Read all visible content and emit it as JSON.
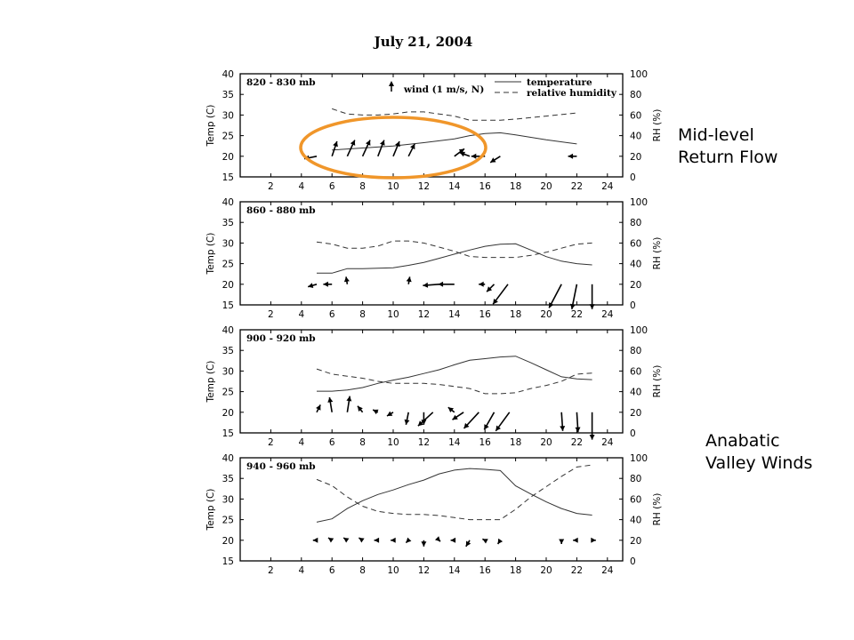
{
  "page": {
    "title": "July 21, 2004",
    "annotations": {
      "upper": [
        "Mid-level",
        "Return Flow"
      ],
      "lower": [
        "Anabatic",
        "Valley Winds"
      ]
    },
    "highlight_color": "#f0962a"
  },
  "chart_data": [
    {
      "type": "line",
      "title": "820 - 830 mb",
      "ylabel": "Temp (C)",
      "y2label": "RH (%)",
      "xlim": [
        0,
        25
      ],
      "x_ticks": [
        2,
        4,
        6,
        8,
        10,
        12,
        14,
        16,
        18,
        20,
        22,
        24
      ],
      "ylim": [
        15,
        40
      ],
      "y_ticks": [
        15,
        20,
        25,
        30,
        35,
        40
      ],
      "y2lim": [
        0,
        100
      ],
      "y2_ticks": [
        0,
        20,
        40,
        60,
        80,
        100
      ],
      "legend": {
        "placement": "top-right",
        "entries": [
          {
            "label": "temperature",
            "style": "solid"
          },
          {
            "label": "relative humidity",
            "style": "dashed"
          }
        ]
      },
      "wind_reference": {
        "label": "wind (1 m/s, N)"
      },
      "highlight": "orange ellipse around winds from hour 5 to 15",
      "series": [
        {
          "name": "temperature",
          "axis": "left",
          "style": "solid",
          "x": [
            6,
            8,
            10,
            12,
            14,
            15,
            16,
            17,
            18,
            20,
            22
          ],
          "y": [
            21.5,
            22.0,
            22.5,
            23.3,
            24.2,
            25.0,
            25.5,
            25.7,
            25.2,
            24.0,
            23.0
          ]
        },
        {
          "name": "relative humidity",
          "axis": "right",
          "style": "dashed",
          "x": [
            6,
            7,
            8,
            9,
            10,
            11,
            12,
            13,
            14,
            15,
            16,
            17,
            18,
            20,
            22
          ],
          "y": [
            66,
            61,
            60,
            60,
            61,
            63,
            63,
            61,
            59,
            55,
            55,
            55,
            56,
            59,
            62
          ]
        }
      ],
      "winds": [
        {
          "x": 5,
          "u": -1.0,
          "v": -0.2
        },
        {
          "x": 6,
          "u": 0.4,
          "v": 1.2
        },
        {
          "x": 7,
          "u": 0.6,
          "v": 1.3
        },
        {
          "x": 8,
          "u": 0.6,
          "v": 1.3
        },
        {
          "x": 9,
          "u": 0.5,
          "v": 1.3
        },
        {
          "x": 10,
          "u": 0.5,
          "v": 1.2
        },
        {
          "x": 11,
          "u": 0.5,
          "v": 1.0
        },
        {
          "x": 14,
          "u": 0.8,
          "v": 0.6
        },
        {
          "x": 15,
          "u": -0.8,
          "v": 0.3
        },
        {
          "x": 16,
          "u": -1.1,
          "v": 0.0
        },
        {
          "x": 17,
          "u": -0.8,
          "v": -0.5
        },
        {
          "x": 22,
          "u": -0.7,
          "v": 0.0
        }
      ]
    },
    {
      "type": "line",
      "title": "860 - 880 mb",
      "ylabel": "Temp (C)",
      "y2label": "RH (%)",
      "xlim": [
        0,
        25
      ],
      "x_ticks": [
        2,
        4,
        6,
        8,
        10,
        12,
        14,
        16,
        18,
        20,
        22,
        24
      ],
      "ylim": [
        15,
        40
      ],
      "y_ticks": [
        15,
        20,
        25,
        30,
        35,
        40
      ],
      "y2lim": [
        0,
        100
      ],
      "y2_ticks": [
        0,
        20,
        40,
        60,
        80,
        100
      ],
      "series": [
        {
          "name": "temperature",
          "axis": "left",
          "style": "solid",
          "x": [
            5,
            6,
            7,
            8,
            9,
            10,
            11,
            12,
            13,
            14,
            15,
            16,
            17,
            18,
            19,
            20,
            21,
            22,
            23
          ],
          "y": [
            22.7,
            22.7,
            23.8,
            23.8,
            23.9,
            24.0,
            24.6,
            25.3,
            26.3,
            27.3,
            28.3,
            29.2,
            29.7,
            29.8,
            28.3,
            26.7,
            25.6,
            25.0,
            24.7
          ]
        },
        {
          "name": "relative humidity",
          "axis": "right",
          "style": "dashed",
          "x": [
            5,
            6,
            7,
            8,
            9,
            10,
            11,
            12,
            13,
            14,
            15,
            16,
            17,
            18,
            19,
            20,
            21,
            22,
            23
          ],
          "y": [
            61,
            59,
            55,
            55,
            57,
            62,
            62,
            60,
            56,
            52,
            47,
            46,
            46,
            46,
            48,
            51,
            55,
            59,
            60
          ]
        }
      ],
      "winds": [
        {
          "x": 5,
          "u": -0.7,
          "v": -0.2
        },
        {
          "x": 6,
          "u": -0.7,
          "v": 0.0
        },
        {
          "x": 7,
          "u": -0.1,
          "v": 0.6
        },
        {
          "x": 11,
          "u": 0.1,
          "v": 0.6
        },
        {
          "x": 13,
          "u": -1.3,
          "v": -0.1
        },
        {
          "x": 14,
          "u": -1.3,
          "v": 0.0
        },
        {
          "x": 16,
          "u": -0.5,
          "v": 0.0
        },
        {
          "x": 16.6,
          "u": -0.6,
          "v": -0.6
        },
        {
          "x": 17.5,
          "u": -1.2,
          "v": -1.6
        },
        {
          "x": 21,
          "u": -1.0,
          "v": -1.9
        },
        {
          "x": 22,
          "u": -0.4,
          "v": -2.0
        },
        {
          "x": 23,
          "u": 0.0,
          "v": -2.0
        }
      ]
    },
    {
      "type": "line",
      "title": "900 - 920 mb",
      "ylabel": "Temp (C)",
      "y2label": "RH (%)",
      "xlim": [
        0,
        25
      ],
      "x_ticks": [
        2,
        4,
        6,
        8,
        10,
        12,
        14,
        16,
        18,
        20,
        22,
        24
      ],
      "ylim": [
        15,
        40
      ],
      "y_ticks": [
        15,
        20,
        25,
        30,
        35,
        40
      ],
      "y2lim": [
        0,
        100
      ],
      "y2_ticks": [
        0,
        20,
        40,
        60,
        80,
        100
      ],
      "series": [
        {
          "name": "temperature",
          "axis": "left",
          "style": "solid",
          "x": [
            5,
            6,
            7,
            8,
            9,
            10,
            11,
            12,
            13,
            14,
            15,
            16,
            17,
            18,
            19,
            20,
            21,
            22,
            23
          ],
          "y": [
            25.1,
            25.1,
            25.4,
            26.0,
            27.0,
            27.8,
            28.5,
            29.4,
            30.3,
            31.5,
            32.6,
            33.0,
            33.4,
            33.6,
            32.0,
            30.3,
            28.6,
            28.1,
            27.9
          ]
        },
        {
          "name": "relative humidity",
          "axis": "right",
          "style": "dashed",
          "x": [
            5,
            6,
            7,
            8,
            9,
            10,
            11,
            12,
            13,
            14,
            15,
            16,
            17,
            18,
            19,
            20,
            21,
            22,
            23
          ],
          "y": [
            62,
            57,
            55,
            53,
            50,
            48,
            48,
            48,
            47,
            45,
            43,
            38,
            38,
            39,
            43,
            46,
            50,
            57,
            58
          ]
        }
      ],
      "winds": [
        {
          "x": 5,
          "u": 0.3,
          "v": 0.6
        },
        {
          "x": 6,
          "u": -0.2,
          "v": 1.2
        },
        {
          "x": 7,
          "u": 0.2,
          "v": 1.3
        },
        {
          "x": 8,
          "u": -0.4,
          "v": 0.5
        },
        {
          "x": 9,
          "u": -0.4,
          "v": 0.2
        },
        {
          "x": 10,
          "u": -0.5,
          "v": -0.3
        },
        {
          "x": 11,
          "u": -0.2,
          "v": -1.0
        },
        {
          "x": 12,
          "u": 0.0,
          "v": -1.0
        },
        {
          "x": 12.6,
          "u": -1.2,
          "v": -1.1
        },
        {
          "x": 14,
          "u": -0.5,
          "v": 0.4
        },
        {
          "x": 14.6,
          "u": -0.9,
          "v": -0.6
        },
        {
          "x": 15.6,
          "u": -1.2,
          "v": -1.3
        },
        {
          "x": 16.6,
          "u": -0.8,
          "v": -1.4
        },
        {
          "x": 17.6,
          "u": -1.1,
          "v": -1.5
        },
        {
          "x": 21,
          "u": 0.1,
          "v": -1.5
        },
        {
          "x": 22,
          "u": 0.1,
          "v": -1.6
        },
        {
          "x": 23,
          "u": 0.0,
          "v": -2.2
        }
      ]
    },
    {
      "type": "line",
      "title": "940 - 960 mb",
      "ylabel": "Temp (C)",
      "y2label": "RH (%)",
      "xlim": [
        0,
        25
      ],
      "x_ticks": [
        2,
        4,
        6,
        8,
        10,
        12,
        14,
        16,
        18,
        20,
        22,
        24
      ],
      "ylim": [
        15,
        40
      ],
      "y_ticks": [
        15,
        20,
        25,
        30,
        35,
        40
      ],
      "y2lim": [
        0,
        100
      ],
      "y2_ticks": [
        0,
        20,
        40,
        60,
        80,
        100
      ],
      "series": [
        {
          "name": "temperature",
          "axis": "left",
          "style": "solid",
          "x": [
            5,
            6,
            7,
            8,
            9,
            10,
            11,
            12,
            13,
            14,
            15,
            16,
            17,
            18,
            19,
            20,
            21,
            22,
            23
          ],
          "y": [
            24.4,
            25.2,
            27.7,
            29.6,
            31.1,
            32.2,
            33.5,
            34.6,
            36.1,
            37.0,
            37.4,
            37.2,
            36.9,
            33.2,
            31.2,
            29.3,
            27.7,
            26.5,
            26.1
          ]
        },
        {
          "name": "relative humidity",
          "axis": "right",
          "style": "dashed",
          "x": [
            5,
            6,
            7,
            8,
            9,
            10,
            11,
            12,
            13,
            14,
            15,
            16,
            17,
            18,
            19,
            20,
            21,
            22,
            23
          ],
          "y": [
            79,
            73,
            62,
            53,
            48,
            46,
            45,
            45,
            44,
            42,
            40,
            40,
            40,
            50,
            62,
            72,
            82,
            91,
            93
          ]
        }
      ],
      "winds": [
        {
          "x": 5,
          "u": -0.3,
          "v": 0.0
        },
        {
          "x": 6,
          "u": -0.3,
          "v": 0.2
        },
        {
          "x": 7,
          "u": -0.3,
          "v": 0.2
        },
        {
          "x": 8,
          "u": -0.3,
          "v": 0.2
        },
        {
          "x": 9,
          "u": -0.3,
          "v": 0.0
        },
        {
          "x": 10,
          "u": -0.2,
          "v": 0.0
        },
        {
          "x": 11,
          "u": -0.2,
          "v": -0.2
        },
        {
          "x": 12,
          "u": 0.0,
          "v": -0.5
        },
        {
          "x": 13,
          "u": 0.1,
          "v": -0.1
        },
        {
          "x": 14,
          "u": -0.3,
          "v": 0.0
        },
        {
          "x": 15,
          "u": -0.3,
          "v": -0.5
        },
        {
          "x": 16,
          "u": -0.2,
          "v": 0.1
        },
        {
          "x": 17,
          "u": -0.2,
          "v": -0.3
        },
        {
          "x": 21,
          "u": 0.0,
          "v": -0.3
        },
        {
          "x": 22,
          "u": -0.3,
          "v": 0.0
        },
        {
          "x": 23,
          "u": 0.3,
          "v": 0.0
        }
      ]
    }
  ]
}
